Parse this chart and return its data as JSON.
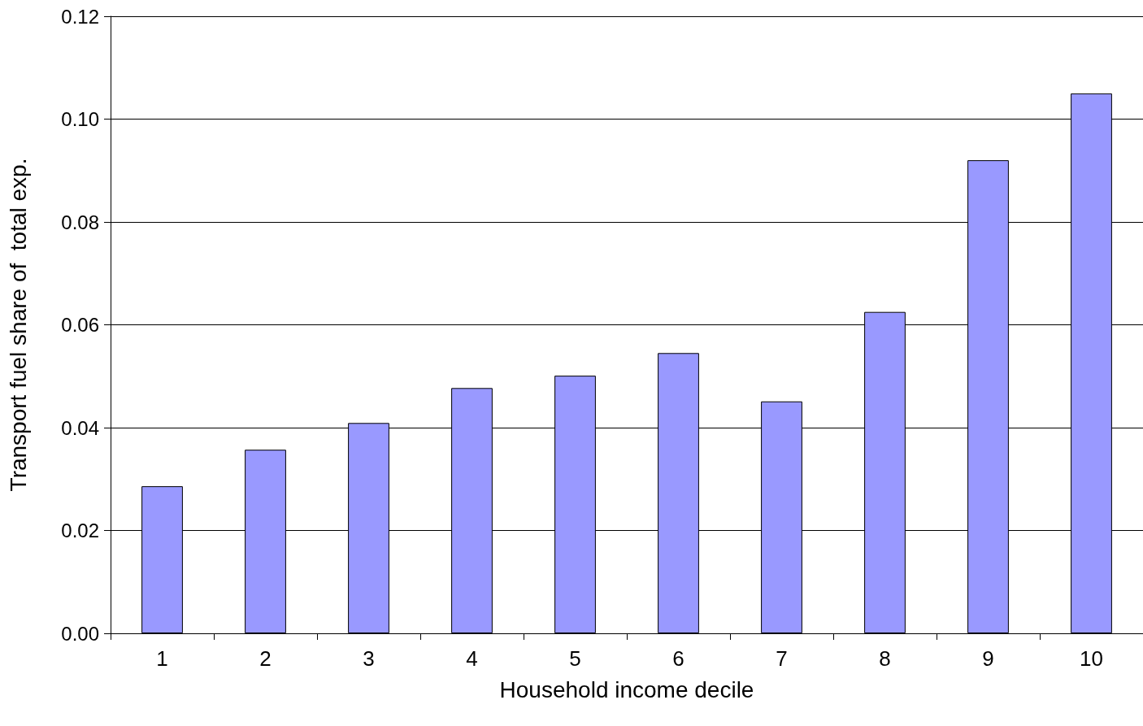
{
  "chart_data": {
    "type": "bar",
    "xlabel": "Household income decile",
    "ylabel": "Transport fuel share of  total exp.",
    "categories": [
      "1",
      "2",
      "3",
      "4",
      "5",
      "6",
      "7",
      "8",
      "9",
      "10"
    ],
    "values": [
      0.0286,
      0.0357,
      0.0409,
      0.0477,
      0.0501,
      0.0545,
      0.0451,
      0.0625,
      0.092,
      0.105
    ],
    "color": "#9999ff",
    "ylim": [
      0,
      0.12
    ],
    "yticks": [
      {
        "value": 0,
        "label": "0.00"
      },
      {
        "value": 0.02,
        "label": "0.02"
      },
      {
        "value": 0.04,
        "label": "0.04"
      },
      {
        "value": 0.06,
        "label": "0.06"
      },
      {
        "value": 0.08,
        "label": "0.08"
      },
      {
        "value": 0.1,
        "label": "0.10"
      },
      {
        "value": 0.12,
        "label": "0.12"
      }
    ],
    "grid": "y"
  }
}
